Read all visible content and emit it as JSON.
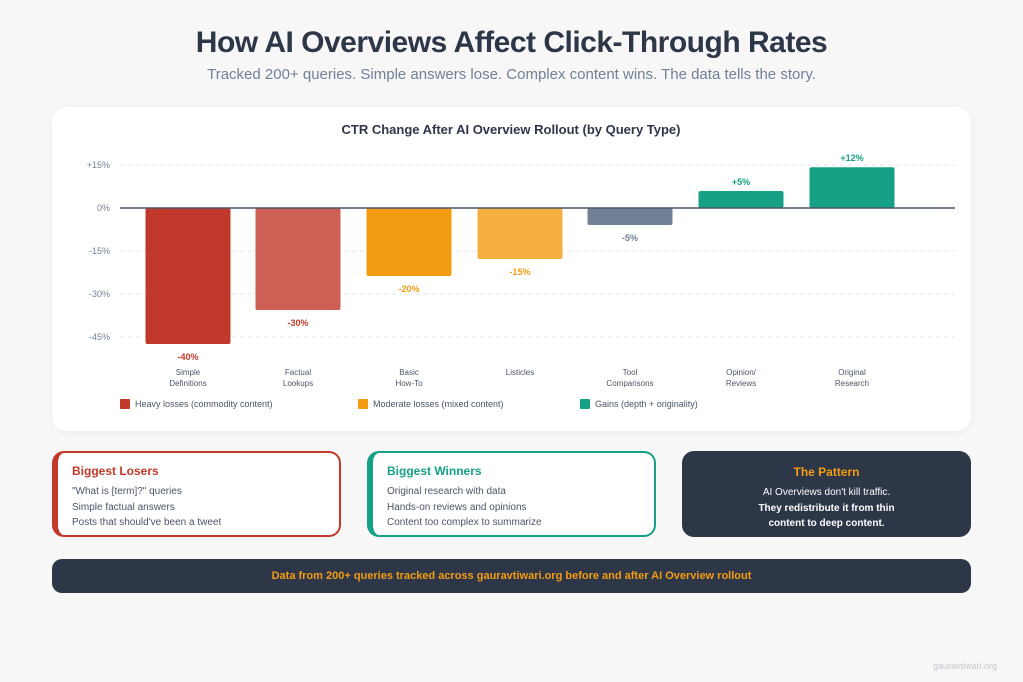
{
  "header": {
    "title": "How AI Overviews Affect Click-Through Rates",
    "subtitle": "Tracked 200+ queries. Simple answers lose. Complex content wins. The data tells the story."
  },
  "chart_data": {
    "type": "bar",
    "title": "CTR Change After AI Overview Rollout (by Query Type)",
    "categories": [
      [
        "Simple",
        "Definitions"
      ],
      [
        "Factual",
        "Lookups"
      ],
      [
        "Basic",
        "How-To"
      ],
      [
        "Listicles"
      ],
      [
        "Tool",
        "Comparisons"
      ],
      [
        "Opinion/",
        "Reviews"
      ],
      [
        "Original",
        "Research"
      ]
    ],
    "values": [
      -40,
      -30,
      -20,
      -15,
      -5,
      5,
      12
    ],
    "value_labels": [
      "-40%",
      "-30%",
      "-20%",
      "-15%",
      "-5%",
      "+5%",
      "+12%"
    ],
    "colors": [
      "#c0392b",
      "#cd5f55",
      "#f39c12",
      "#f6b040",
      "#718096",
      "#16a085",
      "#16a085"
    ],
    "label_colors": [
      "#c0392b",
      "#c0392b",
      "#f39c12",
      "#f39c12",
      "#718096",
      "#16a085",
      "#16a085"
    ],
    "yticks": [
      15,
      0,
      -15,
      -30,
      -45
    ],
    "ytick_labels": [
      "+15%",
      "0%",
      "-15%",
      "-30%",
      "-45%"
    ],
    "ylim": [
      -45,
      15
    ],
    "grid": true,
    "legend_position": "bottom-left",
    "legend": [
      {
        "label": "Heavy losses (commodity content)",
        "color": "#c0392b"
      },
      {
        "label": "Moderate losses (mixed content)",
        "color": "#f39c12"
      },
      {
        "label": "Gains (depth + originality)",
        "color": "#16a085"
      }
    ]
  },
  "losers": {
    "title": "Biggest Losers",
    "items": [
      "\"What is [term]?\" queries",
      "Simple factual answers",
      "Posts that should've been a tweet"
    ]
  },
  "winners": {
    "title": "Biggest Winners",
    "items": [
      "Original research with data",
      "Hands-on reviews and opinions",
      "Content too complex to summarize"
    ]
  },
  "pattern": {
    "title": "The Pattern",
    "line1": "AI Overviews don't kill traffic.",
    "line2": "They redistribute it from thin",
    "line3": "content to deep content."
  },
  "footer": "Data from 200+ queries tracked across gauravtiwari.org before and after AI Overview rollout",
  "watermark": "gauravtiwari.org"
}
